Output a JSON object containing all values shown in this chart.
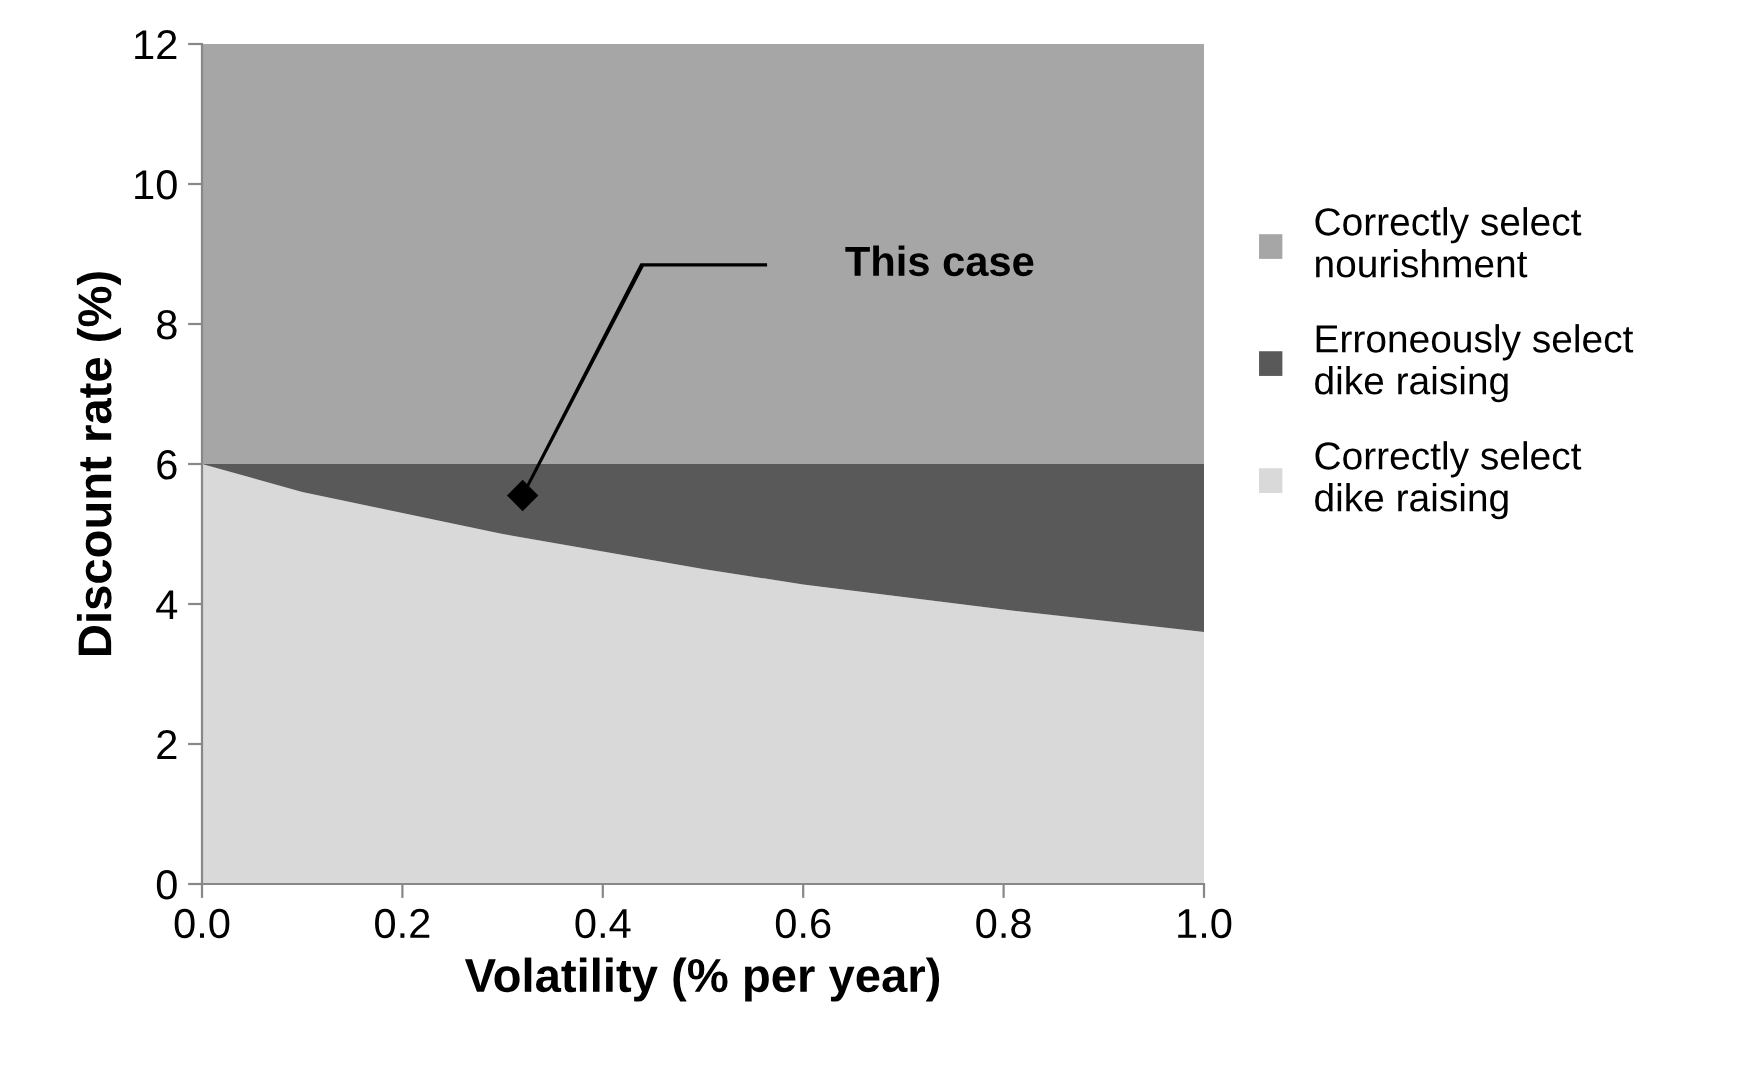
{
  "chart_data": {
    "type": "area",
    "stacked": true,
    "xlabel": "Volatility (% per year)",
    "ylabel": "Discount rate (%)",
    "x": [
      0,
      0.1,
      0.2,
      0.3,
      0.4,
      0.5,
      0.6,
      0.7,
      0.8,
      0.9,
      1.0
    ],
    "series": [
      {
        "name": "Correctly select dike raising",
        "color": "#d9d9d9",
        "values": [
          6.0,
          5.6,
          5.3,
          5.0,
          4.75,
          4.5,
          4.28,
          4.1,
          3.92,
          3.76,
          3.6
        ]
      },
      {
        "name": "Erroneously select dike raising",
        "color": "#595959",
        "values": [
          0.0,
          0.4,
          0.7,
          1.0,
          1.25,
          1.5,
          1.72,
          1.9,
          2.08,
          2.24,
          2.4
        ]
      },
      {
        "name": "Correctly select nourishment",
        "color": "#a6a6a6",
        "values": [
          6,
          6,
          6,
          6,
          6,
          6,
          6,
          6,
          6,
          6,
          6
        ]
      },
      {
        "type": "scatter",
        "color": "#000000",
        "marker": "diamond",
        "x": [
          0.32
        ],
        "values": [
          5.55
        ]
      }
    ],
    "annotations": [
      "This case"
    ],
    "xlim": [
      0,
      1
    ],
    "xticks": [
      {
        "value": 0,
        "label": "0.0"
      },
      {
        "value": 0.2,
        "label": "0.2"
      },
      {
        "value": 0.4,
        "label": "0.4"
      },
      {
        "value": 0.6,
        "label": "0.6"
      },
      {
        "value": 0.8,
        "label": "0.8"
      },
      {
        "value": 1.0,
        "label": "1.0"
      }
    ],
    "ylim": [
      0,
      12
    ],
    "yticks": [
      0,
      2,
      4,
      6,
      8,
      10,
      12
    ],
    "grid": false,
    "legend": "right"
  }
}
